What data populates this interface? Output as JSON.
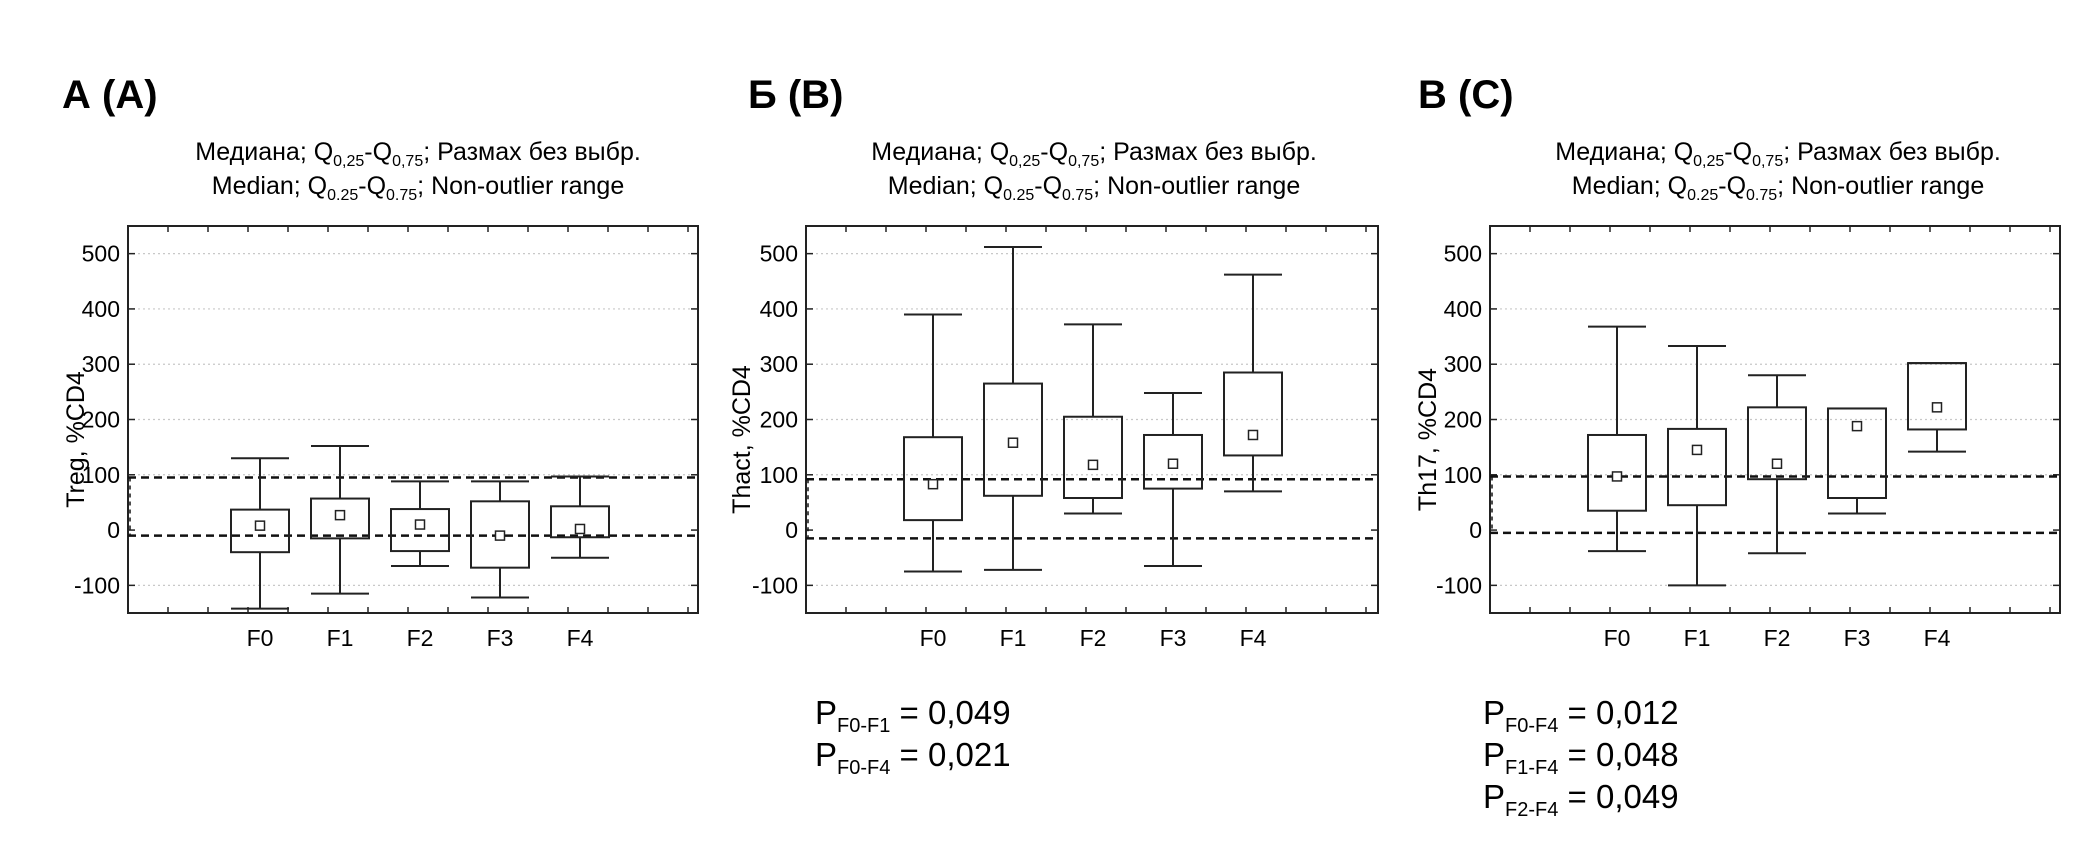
{
  "chart_data": [
    {
      "type": "box",
      "panel_label": "А (A)",
      "title_ru": {
        "pre": "Медиана; Q",
        "s1": "0,25",
        "mid": "-Q",
        "s2": "0,75",
        "post": "; Размах без выбр."
      },
      "title_en": {
        "pre": "Median; Q",
        "s1": "0.25",
        "mid": "-Q",
        "s2": "0.75",
        "post": "; Non-outlier range"
      },
      "ylabel": "Treg, %CD4",
      "ylim": [
        -150,
        550
      ],
      "yticks": [
        -100,
        0,
        100,
        200,
        300,
        400,
        500
      ],
      "ytick_labels": [
        "-100",
        "0",
        "100",
        "200",
        "300",
        "400",
        "500"
      ],
      "categories": [
        "F0",
        "F1",
        "F2",
        "F3",
        "F4"
      ],
      "boxes": [
        {
          "whisker_low": -142,
          "q1": -40,
          "median": 8,
          "q3": 37,
          "whisker_high": 130
        },
        {
          "whisker_low": -115,
          "q1": -15,
          "median": 27,
          "q3": 57,
          "whisker_high": 152
        },
        {
          "whisker_low": -65,
          "q1": -38,
          "median": 10,
          "q3": 38,
          "whisker_high": 88
        },
        {
          "whisker_low": -122,
          "q1": -68,
          "median": -10,
          "q3": 52,
          "whisker_high": 88
        },
        {
          "whisker_low": -50,
          "q1": -13,
          "median": 2,
          "q3": 43,
          "whisker_high": 97
        }
      ],
      "reference_band": [
        -10,
        95
      ],
      "grid": true,
      "p_values": []
    },
    {
      "type": "box",
      "panel_label": "Б (B)",
      "title_ru": {
        "pre": "Медиана; Q",
        "s1": "0,25",
        "mid": "-Q",
        "s2": "0,75",
        "post": "; Размах без выбр."
      },
      "title_en": {
        "pre": "Median; Q",
        "s1": "0.25",
        "mid": "-Q",
        "s2": "0.75",
        "post": "; Non-outlier range"
      },
      "ylabel": "Thact, %CD4",
      "ylim": [
        -150,
        550
      ],
      "yticks": [
        -100,
        0,
        100,
        200,
        300,
        400,
        500
      ],
      "ytick_labels": [
        "-100",
        "0",
        "100",
        "200",
        "300",
        "400",
        "500"
      ],
      "categories": [
        "F0",
        "F1",
        "F2",
        "F3",
        "F4"
      ],
      "boxes": [
        {
          "whisker_low": -75,
          "q1": 18,
          "median": 83,
          "q3": 168,
          "whisker_high": 390
        },
        {
          "whisker_low": -72,
          "q1": 62,
          "median": 158,
          "q3": 265,
          "whisker_high": 512
        },
        {
          "whisker_low": 30,
          "q1": 58,
          "median": 118,
          "q3": 205,
          "whisker_high": 372
        },
        {
          "whisker_low": -65,
          "q1": 75,
          "median": 120,
          "q3": 172,
          "whisker_high": 248
        },
        {
          "whisker_low": 70,
          "q1": 135,
          "median": 172,
          "q3": 285,
          "whisker_high": 462
        }
      ],
      "reference_band": [
        -15,
        92
      ],
      "grid": true,
      "p_values": [
        {
          "p": "P",
          "sub": "F0-F1",
          "value": " = 0,049"
        },
        {
          "p": "P",
          "sub": "F0-F4",
          "value": " = 0,021"
        }
      ]
    },
    {
      "type": "box",
      "panel_label": "В (C)",
      "title_ru": {
        "pre": "Медиана; Q",
        "s1": "0,25",
        "mid": "-Q",
        "s2": "0,75",
        "post": "; Размах без выбр."
      },
      "title_en": {
        "pre": "Median; Q",
        "s1": "0.25",
        "mid": "-Q",
        "s2": "0.75",
        "post": "; Non-outlier range"
      },
      "ylabel": "Th17, %CD4",
      "ylim": [
        -150,
        550
      ],
      "yticks": [
        -100,
        0,
        100,
        200,
        300,
        400,
        500
      ],
      "ytick_labels": [
        "-100",
        "0",
        "100",
        "200",
        "300",
        "400",
        "500"
      ],
      "categories": [
        "F0",
        "F1",
        "F2",
        "F3",
        "F4"
      ],
      "boxes": [
        {
          "whisker_low": -38,
          "q1": 35,
          "median": 97,
          "q3": 172,
          "whisker_high": 368
        },
        {
          "whisker_low": -100,
          "q1": 45,
          "median": 145,
          "q3": 183,
          "whisker_high": 333
        },
        {
          "whisker_low": -42,
          "q1": 92,
          "median": 120,
          "q3": 222,
          "whisker_high": 280
        },
        {
          "whisker_low": 30,
          "q1": 58,
          "median": 188,
          "q3": 220,
          "whisker_high": 220
        },
        {
          "whisker_low": 142,
          "q1": 182,
          "median": 222,
          "q3": 302,
          "whisker_high": 302
        }
      ],
      "reference_band": [
        -5,
        97
      ],
      "grid": true,
      "p_values": [
        {
          "p": "P",
          "sub": "F0-F4",
          "value": " = 0,012"
        },
        {
          "p": "P",
          "sub": "F1-F4",
          "value": " = 0,048"
        },
        {
          "p": "P",
          "sub": "F2-F4",
          "value": " = 0,049"
        }
      ]
    }
  ]
}
